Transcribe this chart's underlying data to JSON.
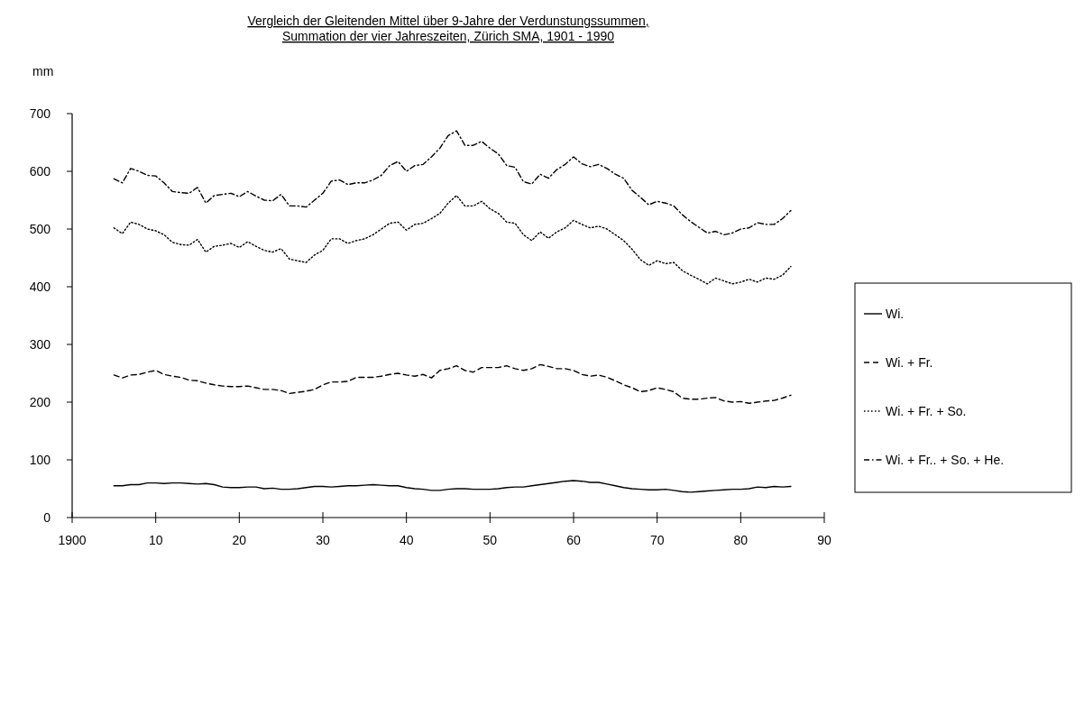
{
  "chart_data": {
    "type": "line",
    "title": "Vergleich der Gleitenden Mittel über 9-Jahre der  Verdunstungssummen,\nSummation der vier Jahreszeiten, Zürich SMA, 1901 - 1990",
    "ylabel": "mm",
    "x": [
      1905,
      1906,
      1907,
      1908,
      1909,
      1910,
      1911,
      1912,
      1913,
      1914,
      1915,
      1916,
      1917,
      1918,
      1919,
      1920,
      1921,
      1922,
      1923,
      1924,
      1925,
      1926,
      1927,
      1928,
      1929,
      1930,
      1931,
      1932,
      1933,
      1934,
      1935,
      1936,
      1937,
      1938,
      1939,
      1940,
      1941,
      1942,
      1943,
      1944,
      1945,
      1946,
      1947,
      1948,
      1949,
      1950,
      1951,
      1952,
      1953,
      1954,
      1955,
      1956,
      1957,
      1958,
      1959,
      1960,
      1961,
      1962,
      1963,
      1964,
      1965,
      1966,
      1967,
      1968,
      1969,
      1970,
      1971,
      1972,
      1973,
      1974,
      1975,
      1976,
      1977,
      1978,
      1979,
      1980,
      1981,
      1982,
      1983,
      1984,
      1985,
      1986
    ],
    "series": [
      {
        "name": "Wi.",
        "color": "#000000",
        "line_style": "solid",
        "values": [
          55,
          55,
          57,
          57,
          60,
          60,
          59,
          60,
          60,
          59,
          58,
          59,
          57,
          53,
          52,
          52,
          53,
          53,
          50,
          51,
          49,
          49,
          50,
          52,
          54,
          54,
          53,
          54,
          55,
          55,
          56,
          57,
          56,
          55,
          55,
          52,
          50,
          49,
          47,
          47,
          49,
          50,
          50,
          49,
          49,
          49,
          50,
          52,
          53,
          53,
          55,
          57,
          59,
          61,
          63,
          64,
          63,
          61,
          61,
          58,
          55,
          52,
          50,
          49,
          48,
          48,
          49,
          47,
          45,
          44,
          45,
          46,
          47,
          48,
          49,
          49,
          50,
          53,
          52,
          54,
          53,
          54
        ]
      },
      {
        "name": "Wi. + Fr.",
        "color": "#000000",
        "line_style": "dashed",
        "values": [
          247,
          242,
          247,
          248,
          252,
          255,
          248,
          245,
          243,
          238,
          237,
          233,
          230,
          228,
          227,
          227,
          228,
          225,
          222,
          222,
          220,
          215,
          217,
          219,
          222,
          230,
          235,
          235,
          236,
          243,
          243,
          243,
          245,
          248,
          250,
          247,
          245,
          248,
          242,
          255,
          258,
          263,
          255,
          252,
          260,
          260,
          260,
          263,
          258,
          255,
          258,
          265,
          262,
          258,
          258,
          255,
          248,
          245,
          247,
          243,
          237,
          230,
          225,
          218,
          220,
          225,
          222,
          218,
          207,
          205,
          205,
          207,
          208,
          202,
          200,
          201,
          198,
          200,
          202,
          203,
          207,
          212
        ]
      },
      {
        "name": "Wi. + Fr. + So.",
        "color": "#000000",
        "line_style": "dotted",
        "values": [
          502,
          492,
          512,
          508,
          500,
          497,
          490,
          477,
          473,
          472,
          482,
          460,
          470,
          472,
          475,
          468,
          478,
          470,
          463,
          460,
          466,
          448,
          445,
          442,
          455,
          463,
          483,
          483,
          475,
          480,
          483,
          490,
          500,
          510,
          512,
          498,
          508,
          510,
          518,
          527,
          545,
          558,
          540,
          540,
          548,
          535,
          527,
          512,
          510,
          490,
          480,
          495,
          484,
          495,
          502,
          515,
          508,
          502,
          505,
          500,
          490,
          480,
          465,
          447,
          437,
          445,
          440,
          442,
          428,
          420,
          413,
          405,
          415,
          410,
          405,
          408,
          413,
          408,
          415,
          413,
          420,
          435
        ]
      },
      {
        "name": "Wi. + Fr.. + So. + He.",
        "color": "#000000",
        "line_style": "dashdot",
        "values": [
          587,
          580,
          605,
          600,
          593,
          592,
          580,
          565,
          563,
          562,
          572,
          545,
          558,
          560,
          562,
          556,
          565,
          557,
          550,
          549,
          560,
          540,
          540,
          538,
          550,
          562,
          583,
          585,
          577,
          580,
          580,
          585,
          593,
          610,
          617,
          600,
          610,
          612,
          625,
          640,
          662,
          670,
          645,
          645,
          652,
          640,
          630,
          610,
          607,
          582,
          578,
          595,
          588,
          603,
          612,
          625,
          613,
          608,
          612,
          605,
          595,
          588,
          567,
          555,
          542,
          548,
          545,
          540,
          525,
          513,
          503,
          493,
          496,
          490,
          493,
          500,
          502,
          511,
          508,
          508,
          518,
          532
        ]
      }
    ],
    "xlim": [
      1900,
      1990
    ],
    "xticks": [
      1900,
      {
        "value": 1910,
        "label": "10"
      },
      {
        "value": 1920,
        "label": "20"
      },
      {
        "value": 1930,
        "label": "30"
      },
      {
        "value": 1940,
        "label": "40"
      },
      {
        "value": 1950,
        "label": "50"
      },
      {
        "value": 1960,
        "label": "60"
      },
      {
        "value": 1970,
        "label": "70"
      },
      {
        "value": 1980,
        "label": "80"
      },
      {
        "value": 1990,
        "label": "90"
      }
    ],
    "ylim": [
      0,
      700
    ],
    "yticks": [
      0,
      100,
      200,
      300,
      400,
      500,
      600,
      700
    ],
    "grid": false,
    "legend": "right"
  }
}
